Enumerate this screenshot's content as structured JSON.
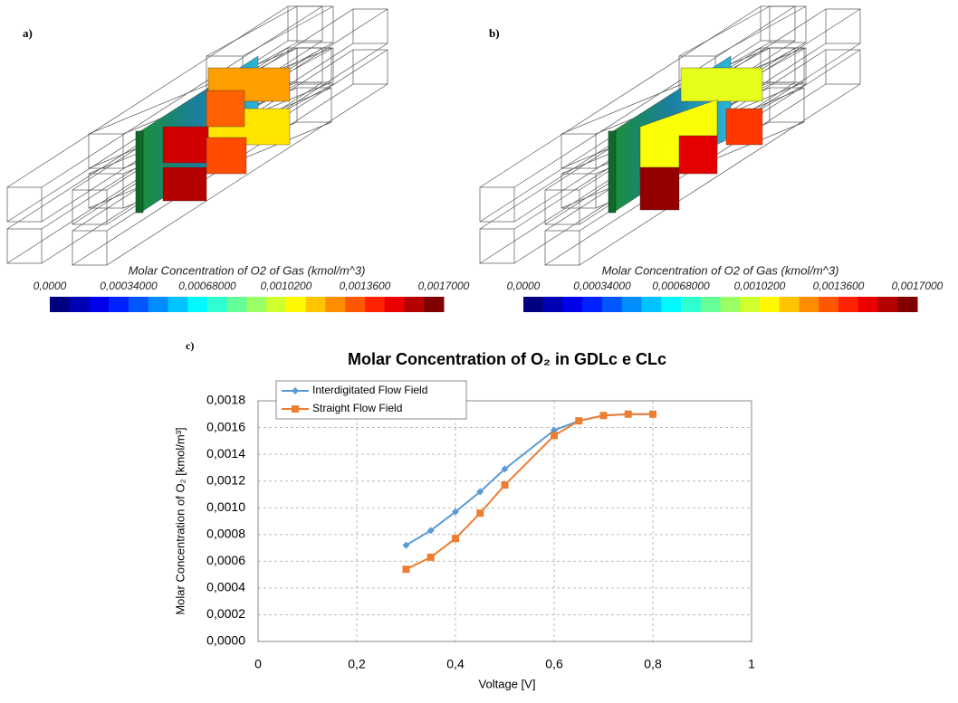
{
  "panels": [
    {
      "label": "a)",
      "colorbar": {
        "title": "Molar Concentration of O2 of Gas (kmol/m^3)",
        "lim": [
          0,
          0.0017
        ],
        "ticks": [
          {
            "value": 0,
            "label": "0,0000"
          },
          {
            "value": 0.00034,
            "label": "0,00034000"
          },
          {
            "value": 0.00068,
            "label": "0,00068000"
          },
          {
            "value": 0.00102,
            "label": "0,0010200"
          },
          {
            "value": 0.00136,
            "label": "0,0013600"
          },
          {
            "value": 0.0017,
            "label": "0,0017000"
          }
        ]
      }
    },
    {
      "label": "b)",
      "colorbar": {
        "title": "Molar Concentration of O2 of Gas (kmol/m^3)",
        "lim": [
          0,
          0.0017
        ],
        "ticks": [
          {
            "value": 0,
            "label": "0,0000"
          },
          {
            "value": 0.00034,
            "label": "0,00034000"
          },
          {
            "value": 0.00068,
            "label": "0,00068000"
          },
          {
            "value": 0.00102,
            "label": "0,0010200"
          },
          {
            "value": 0.00136,
            "label": "0,0013600"
          },
          {
            "value": 0.0017,
            "label": "0,0017000"
          }
        ]
      }
    }
  ],
  "chart_label": "c)",
  "chart_data": {
    "type": "line",
    "title": "Molar Concentration of O₂ in GDLc e CLc",
    "x_label": "Voltage [V]",
    "y_label": "Molar Concentration of O₂ [kmol/m³]",
    "x": [
      0.3,
      0.35,
      0.4,
      0.45,
      0.5,
      0.6,
      0.65,
      0.7,
      0.75,
      0.8
    ],
    "series": [
      {
        "name": "Interdigitated Flow Field",
        "color": "#5b9bd5",
        "marker": "diamond",
        "values": [
          0.00072,
          0.00083,
          0.00097,
          0.00112,
          0.00129,
          0.00158,
          0.00165,
          0.00169,
          0.0017,
          0.0017
        ]
      },
      {
        "name": "Straight Flow Field",
        "color": "#ed7d31",
        "marker": "square",
        "values": [
          0.00054,
          0.00063,
          0.00077,
          0.00096,
          0.00117,
          0.00154,
          0.00165,
          0.00169,
          0.0017,
          0.0017
        ]
      }
    ],
    "xlim": [
      0,
      1
    ],
    "xticks": [
      0,
      {
        "value": 0.2,
        "label": "0,2"
      },
      {
        "value": 0.4,
        "label": "0,4"
      },
      {
        "value": 0.6,
        "label": "0,6"
      },
      {
        "value": 0.8,
        "label": "0,8"
      },
      1
    ],
    "ylim": [
      0,
      0.0018
    ],
    "yticks": [
      {
        "value": 0,
        "label": "0,0000"
      },
      {
        "value": 0.0002,
        "label": "0,0002"
      },
      {
        "value": 0.0004,
        "label": "0,0004"
      },
      {
        "value": 0.0006,
        "label": "0,0006"
      },
      {
        "value": 0.0008,
        "label": "0,0008"
      },
      {
        "value": 0.001,
        "label": "0,0010"
      },
      {
        "value": 0.0012,
        "label": "0,0012"
      },
      {
        "value": 0.0014,
        "label": "0,0014"
      },
      {
        "value": 0.0016,
        "label": "0,0016"
      },
      {
        "value": 0.0018,
        "label": "0,0018"
      }
    ],
    "grid": true,
    "legend": "top-left"
  }
}
